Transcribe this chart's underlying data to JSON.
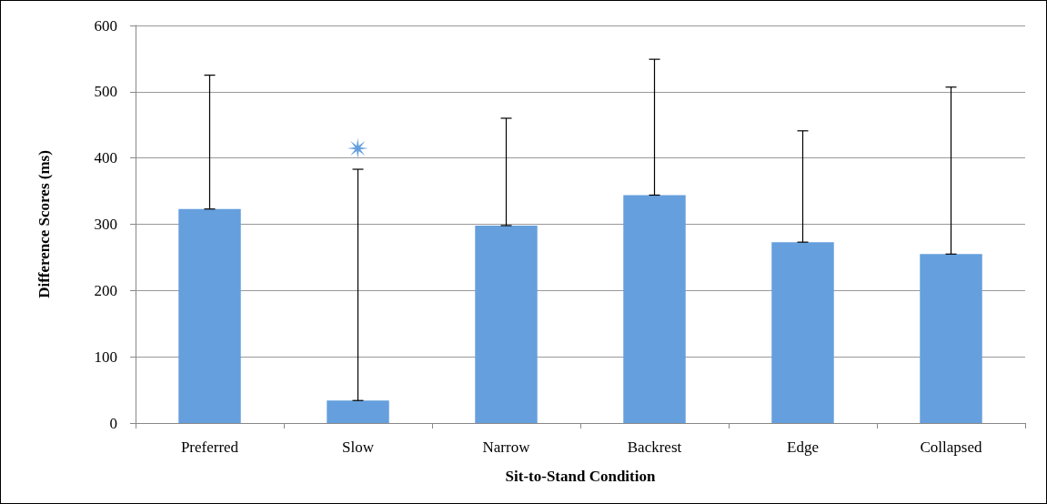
{
  "chart_data": {
    "type": "bar",
    "xlabel": "Sit-to-Stand Condition",
    "ylabel": "Difference Scores (ms)",
    "categories": [
      "Preferred",
      "Slow",
      "Narrow",
      "Backrest",
      "Edge",
      "Collapsed"
    ],
    "values": [
      323,
      34,
      298,
      344,
      273,
      255
    ],
    "errors": [
      [
        323,
        525
      ],
      [
        34,
        383
      ],
      [
        298,
        460
      ],
      [
        344,
        549
      ],
      [
        273,
        441
      ],
      [
        255,
        507
      ]
    ],
    "color": "#659fdd",
    "ylim": [
      0,
      600
    ],
    "yticks": [
      0,
      100,
      200,
      300,
      400,
      500,
      600
    ],
    "grid": "y",
    "annotations": [
      "✴"
    ]
  }
}
